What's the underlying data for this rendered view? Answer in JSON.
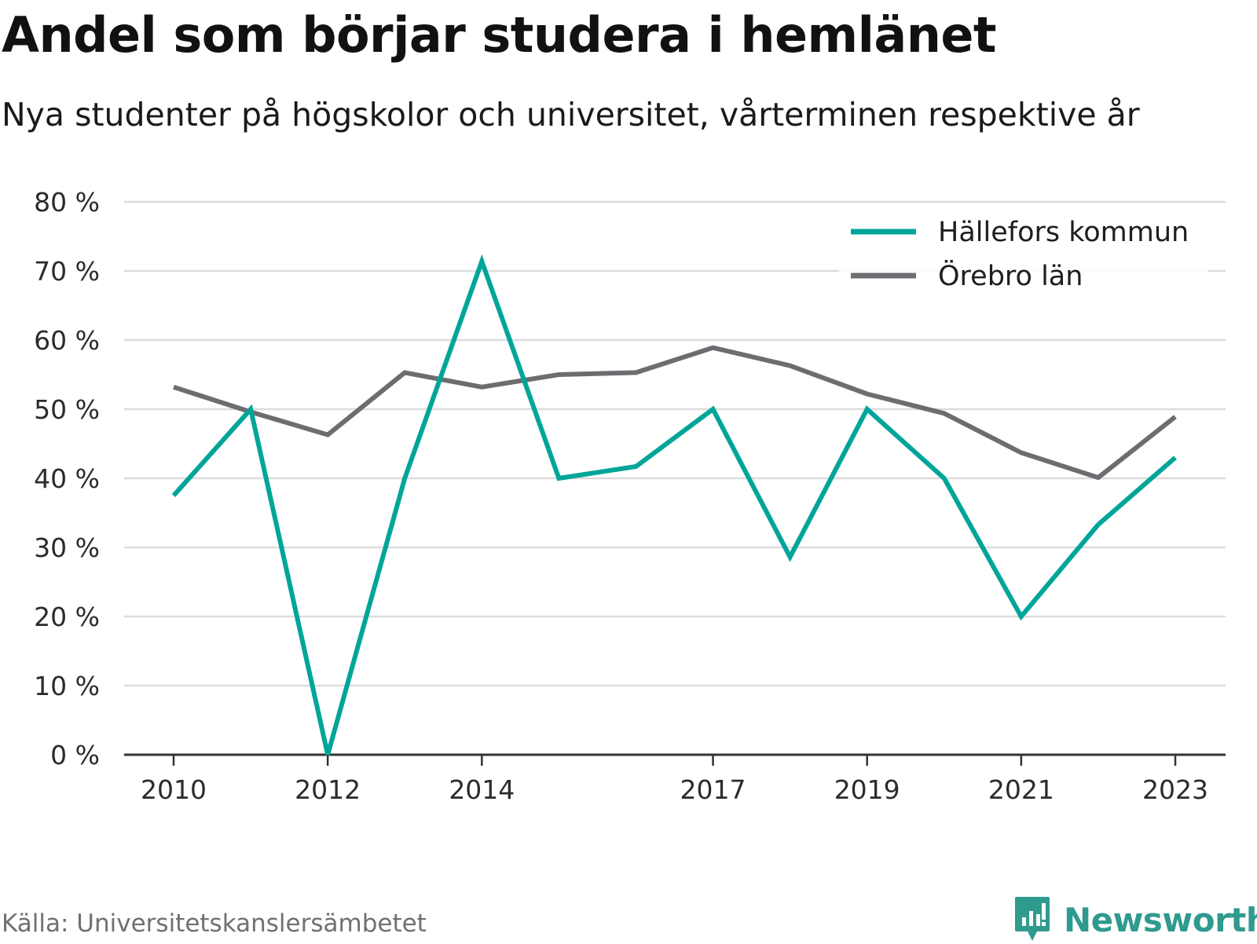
{
  "header": {
    "title": "Andel som börjar studera i hemlänet",
    "subtitle": "Nya studenter på högskolor och universitet, vårterminen respektive år"
  },
  "footer": {
    "source": "Källa: Universitetskanslersämbetet",
    "brand": "Newsworthy",
    "brand_icon": "bar-chart-speech-bubble-icon",
    "brand_color": "#2f9a8e"
  },
  "chart_data": {
    "type": "line",
    "x": [
      2010,
      2011,
      2012,
      2013,
      2014,
      2015,
      2016,
      2017,
      2018,
      2019,
      2020,
      2021,
      2022,
      2023
    ],
    "x_tick_labels": [
      "2010",
      "2012",
      "2014",
      "2017",
      "2019",
      "2021",
      "2023"
    ],
    "x_tick_values": [
      2010,
      2012,
      2014,
      2017,
      2019,
      2021,
      2023
    ],
    "y_ticks": [
      0,
      10,
      20,
      30,
      40,
      50,
      60,
      70,
      80
    ],
    "y_tick_labels": [
      "0 %",
      "10 %",
      "20 %",
      "30 %",
      "40 %",
      "50 %",
      "60 %",
      "70 %",
      "80 %"
    ],
    "ylim": [
      0,
      80
    ],
    "grid": true,
    "legend_position": "top-right",
    "series": [
      {
        "name": "Hällefors kommun",
        "color": "#00a599",
        "values": [
          37.5,
          50.0,
          0.0,
          40.0,
          71.4,
          40.0,
          41.7,
          50.0,
          28.6,
          50.0,
          40.0,
          20.0,
          33.3,
          43.0
        ]
      },
      {
        "name": "Örebro län",
        "color": "#6d6c70",
        "values": [
          53.2,
          49.6,
          46.3,
          55.3,
          53.2,
          55.0,
          55.3,
          58.9,
          56.3,
          52.2,
          49.4,
          43.7,
          40.1,
          48.9
        ]
      }
    ]
  }
}
